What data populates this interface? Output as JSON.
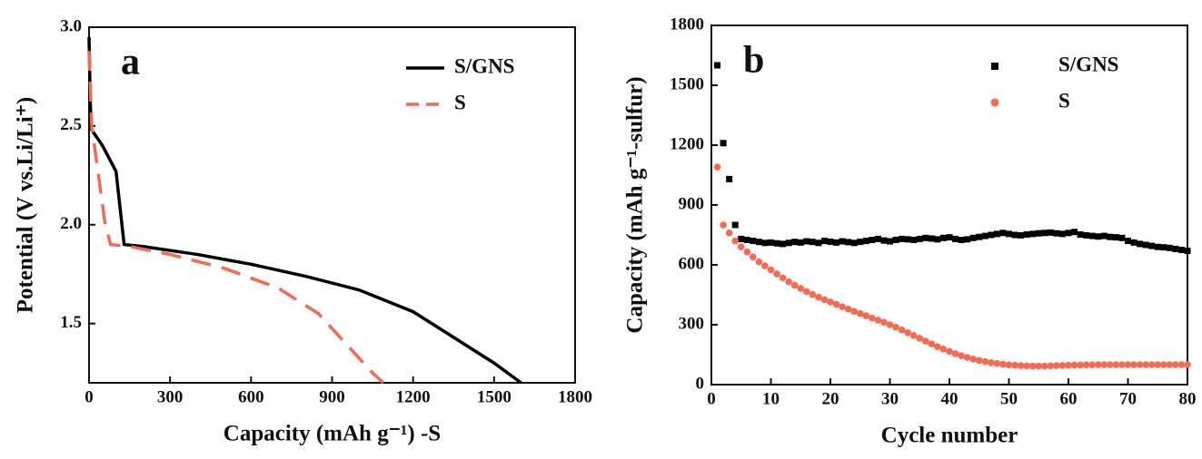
{
  "chart_data": [
    {
      "type": "line",
      "panel_label": "a",
      "x_label": "Capacity (mAh g⁻¹) -S",
      "y_label": "Potential (V vs.Li/Li⁺)",
      "xlim": [
        0,
        1800
      ],
      "xticks": [
        0,
        300,
        600,
        900,
        1200,
        1500,
        1800
      ],
      "ylim": [
        1.2,
        3.0
      ],
      "yticks": [
        1.5,
        {
          "value": 2,
          "label": "2.0"
        },
        2.5,
        {
          "value": 3,
          "label": "3.0"
        }
      ],
      "legend": "upper right",
      "series": [
        {
          "name": "S/GNS",
          "color": "#000000",
          "linestyle": "solid",
          "x": [
            0,
            5,
            10,
            50,
            100,
            130,
            200,
            400,
            600,
            800,
            1000,
            1200,
            1350,
            1500,
            1600
          ],
          "values": [
            2.95,
            2.6,
            2.48,
            2.4,
            2.27,
            1.9,
            1.89,
            1.85,
            1.8,
            1.74,
            1.67,
            1.56,
            1.43,
            1.3,
            1.2
          ]
        },
        {
          "name": "S",
          "color": "#f26b52",
          "linestyle": "dashed",
          "x": [
            0,
            10,
            30,
            60,
            80,
            150,
            300,
            500,
            700,
            850,
            950,
            1050,
            1090
          ],
          "values": [
            2.88,
            2.5,
            2.3,
            2.0,
            1.9,
            1.89,
            1.85,
            1.78,
            1.68,
            1.55,
            1.4,
            1.25,
            1.2
          ]
        }
      ]
    },
    {
      "type": "scatter",
      "panel_label": "b",
      "x_label": "Cycle number",
      "y_label": "Capacity (mAh g⁻¹-sulfur)",
      "xlim": [
        0,
        80
      ],
      "xticks": [
        0,
        10,
        20,
        30,
        40,
        50,
        60,
        70,
        80
      ],
      "ylim": [
        0,
        1800
      ],
      "yticks": [
        0,
        300,
        600,
        900,
        1200,
        1500,
        1800
      ],
      "legend": "upper right",
      "series": [
        {
          "name": "S/GNS",
          "color": "#000000",
          "marker": "square",
          "x": [
            1,
            2,
            3,
            4,
            5,
            6,
            7,
            8,
            9,
            10,
            11,
            12,
            13,
            14,
            15,
            16,
            17,
            18,
            19,
            20,
            21,
            22,
            23,
            24,
            25,
            26,
            27,
            28,
            29,
            30,
            31,
            32,
            33,
            34,
            35,
            36,
            37,
            38,
            39,
            40,
            41,
            42,
            43,
            44,
            45,
            46,
            47,
            48,
            49,
            50,
            51,
            52,
            53,
            54,
            55,
            56,
            57,
            58,
            59,
            60,
            61,
            62,
            63,
            64,
            65,
            66,
            67,
            68,
            69,
            70,
            71,
            72,
            73,
            74,
            75,
            76,
            77,
            78,
            79,
            80
          ],
          "values": [
            1600,
            1210,
            1030,
            800,
            730,
            725,
            720,
            715,
            710,
            712,
            708,
            705,
            710,
            715,
            712,
            718,
            715,
            710,
            720,
            716,
            712,
            718,
            714,
            710,
            715,
            720,
            725,
            730,
            722,
            718,
            725,
            730,
            728,
            725,
            730,
            735,
            732,
            728,
            735,
            738,
            730,
            725,
            728,
            735,
            740,
            745,
            750,
            755,
            760,
            755,
            750,
            748,
            752,
            755,
            758,
            760,
            762,
            758,
            755,
            760,
            765,
            752,
            748,
            745,
            742,
            745,
            740,
            738,
            735,
            720,
            712,
            705,
            700,
            695,
            690,
            688,
            685,
            680,
            675,
            670
          ]
        },
        {
          "name": "S",
          "color": "#f26b52",
          "marker": "circle",
          "x": [
            1,
            2,
            3,
            4,
            5,
            6,
            7,
            8,
            9,
            10,
            11,
            12,
            13,
            14,
            15,
            16,
            17,
            18,
            19,
            20,
            21,
            22,
            23,
            24,
            25,
            26,
            27,
            28,
            29,
            30,
            31,
            32,
            33,
            34,
            35,
            36,
            37,
            38,
            39,
            40,
            41,
            42,
            43,
            44,
            45,
            46,
            47,
            48,
            49,
            50,
            51,
            52,
            53,
            54,
            55,
            56,
            57,
            58,
            59,
            60,
            61,
            62,
            63,
            64,
            65,
            66,
            67,
            68,
            69,
            70,
            71,
            72,
            73,
            74,
            75,
            76,
            77,
            78,
            79,
            80
          ],
          "values": [
            1090,
            800,
            760,
            720,
            690,
            665,
            640,
            615,
            595,
            575,
            555,
            535,
            515,
            498,
            482,
            466,
            452,
            438,
            426,
            414,
            402,
            390,
            378,
            367,
            356,
            345,
            334,
            323,
            312,
            300,
            288,
            274,
            260,
            246,
            232,
            218,
            204,
            190,
            178,
            166,
            155,
            145,
            136,
            128,
            121,
            115,
            110,
            106,
            102,
            99,
            97,
            95,
            94,
            93,
            93,
            93,
            94,
            95,
            96,
            97,
            98,
            98,
            99,
            99,
            100,
            100,
            100,
            100,
            100,
            100,
            100,
            100,
            100,
            100,
            100,
            100,
            100,
            100,
            100,
            100
          ]
        }
      ]
    }
  ]
}
